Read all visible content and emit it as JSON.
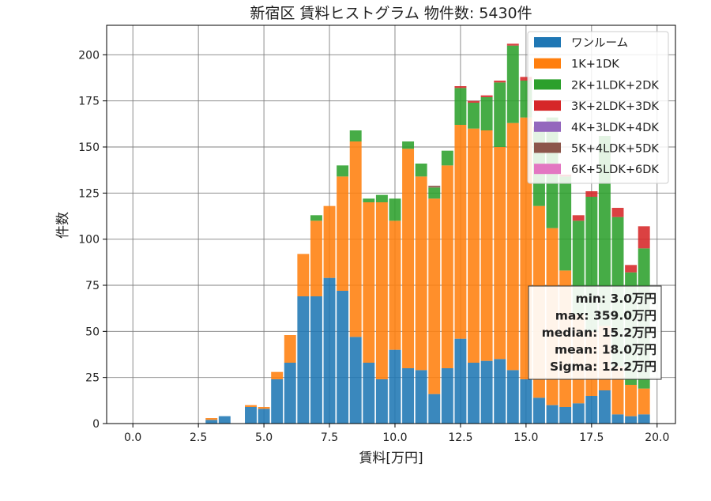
{
  "chart_data": {
    "type": "bar",
    "stacked": true,
    "title": "新宿区 賃料ヒストグラム 物件数: 5430件",
    "xlabel": "賃料[万円]",
    "ylabel": "件数",
    "xlim": [
      -1.0,
      20.7
    ],
    "ylim": [
      0,
      216
    ],
    "grid": true,
    "legend_position": "top-right",
    "bin_width": 0.5,
    "x": [
      3.0,
      3.5,
      4.0,
      4.5,
      5.0,
      5.5,
      6.0,
      6.5,
      7.0,
      7.5,
      8.0,
      8.5,
      9.0,
      9.5,
      10.0,
      10.5,
      11.0,
      11.5,
      12.0,
      12.5,
      13.0,
      13.5,
      14.0,
      14.5,
      15.0,
      15.5,
      16.0,
      16.5,
      17.0,
      17.5,
      18.0,
      18.5,
      19.0,
      19.5
    ],
    "x_ticks": [
      0.0,
      2.5,
      5.0,
      7.5,
      10.0,
      12.5,
      15.0,
      17.5,
      20.0
    ],
    "x_tick_labels": [
      "0.0",
      "2.5",
      "5.0",
      "7.5",
      "10.0",
      "12.5",
      "15.0",
      "17.5",
      "20.0"
    ],
    "y_ticks": [
      0,
      25,
      50,
      75,
      100,
      125,
      150,
      175,
      200
    ],
    "y_tick_labels": [
      "0",
      "25",
      "50",
      "75",
      "100",
      "125",
      "150",
      "175",
      "200"
    ],
    "series": [
      {
        "name": "ワンルーム",
        "color": "#1f77b4",
        "values": [
          2,
          4,
          0,
          9,
          8,
          24,
          33,
          69,
          69,
          79,
          72,
          47,
          33,
          24,
          40,
          30,
          29,
          16,
          30,
          46,
          33,
          34,
          35,
          29,
          24,
          14,
          10,
          9,
          11,
          15,
          18,
          5,
          4,
          5
        ]
      },
      {
        "name": "1K+1DK",
        "color": "#ff7f0e",
        "values": [
          1,
          0,
          0,
          1,
          1,
          4,
          15,
          23,
          41,
          39,
          62,
          106,
          87,
          96,
          70,
          119,
          105,
          106,
          110,
          116,
          127,
          125,
          115,
          134,
          142,
          104,
          96,
          74,
          48,
          35,
          35,
          26,
          17,
          14
        ]
      },
      {
        "name": "2K+1LDK+2DK",
        "color": "#2ca02c",
        "values": [
          0,
          0,
          0,
          0,
          0,
          0,
          0,
          0,
          3,
          0,
          6,
          6,
          2,
          4,
          12,
          4,
          7,
          6,
          8,
          20,
          14,
          18,
          35,
          42,
          20,
          41,
          60,
          51,
          51,
          73,
          103,
          81,
          61,
          76
        ]
      },
      {
        "name": "3K+2LDK+3DK",
        "color": "#d62728",
        "values": [
          0,
          0,
          0,
          0,
          0,
          0,
          0,
          0,
          0,
          0,
          0,
          0,
          0,
          0,
          0,
          0,
          0,
          0,
          0,
          1,
          1,
          1,
          1,
          1,
          2,
          2,
          0,
          1,
          3,
          3,
          0,
          5,
          4,
          12
        ]
      },
      {
        "name": "4K+3LDK+4DK",
        "color": "#9467bd",
        "values": [
          0,
          0,
          0,
          0,
          0,
          0,
          0,
          0,
          0,
          0,
          0,
          0,
          0,
          0,
          0,
          0,
          0,
          0,
          0,
          0,
          0,
          0,
          0,
          0,
          0,
          0,
          0,
          0,
          0,
          0,
          0,
          0,
          0,
          0
        ]
      },
      {
        "name": "5K+4LDK+5DK",
        "color": "#8c564b",
        "values": [
          0,
          0,
          0,
          0,
          0,
          0,
          0,
          0,
          0,
          0,
          0,
          0,
          0,
          0,
          0,
          0,
          0,
          1,
          0,
          0,
          0,
          0,
          0,
          0,
          0,
          0,
          0,
          0,
          0,
          0,
          0,
          0,
          0,
          0
        ]
      },
      {
        "name": "6K+5LDK+6DK",
        "color": "#e377c2",
        "values": [
          0,
          0,
          0,
          0,
          0,
          0,
          0,
          0,
          0,
          0,
          0,
          0,
          0,
          0,
          0,
          0,
          0,
          0,
          0,
          0,
          0,
          0,
          0,
          0,
          0,
          0,
          0,
          0,
          0,
          0,
          0,
          0,
          0,
          0
        ]
      }
    ],
    "stats": [
      "min: 3.0万円",
      "max: 359.0万円",
      "median: 15.2万円",
      "mean: 18.0万円",
      "Sigma: 12.2万円"
    ]
  }
}
